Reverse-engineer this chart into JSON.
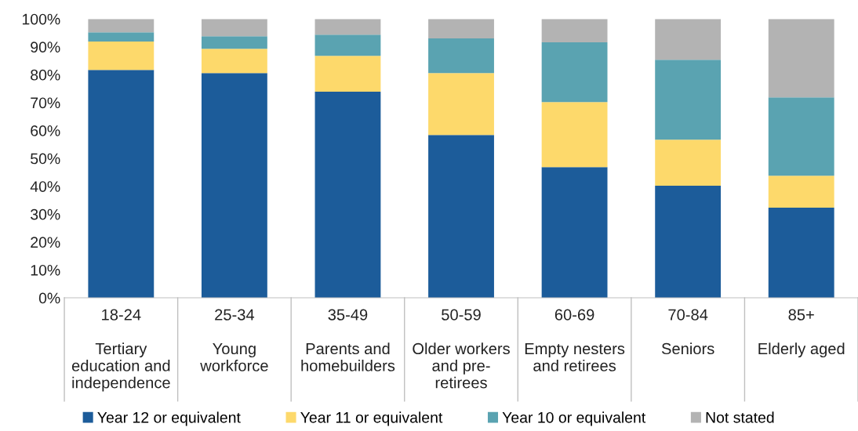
{
  "chart_data": {
    "type": "bar",
    "stacked": true,
    "categories": [
      "18-24\n\nTertiary\neducation and\nindependence",
      "25-34\n\nYoung\nworkforce",
      "35-49\n\nParents and\nhomebuilders",
      "50-59\n\nOlder workers\nand pre-\nretirees",
      "60-69\n\nEmpty nesters\nand retirees",
      "70-84\n\nSeniors",
      "85+\n\nElderly aged"
    ],
    "series": [
      {
        "name": "Year 12 or equivalent",
        "color": "#1c5c9a",
        "values": [
          81.7,
          80.6,
          73.9,
          58.4,
          46.9,
          40.2,
          32.3
        ]
      },
      {
        "name": "Year 11 or equivalent",
        "color": "#fdd96b",
        "values": [
          10.2,
          8.7,
          12.9,
          22.2,
          23.3,
          16.5,
          11.5
        ]
      },
      {
        "name": "Year 10 or equivalent",
        "color": "#5aa3b1",
        "values": [
          3.3,
          4.5,
          7.6,
          12.4,
          21.4,
          28.7,
          28.1
        ]
      },
      {
        "name": "Not stated",
        "color": "#b3b3b3",
        "values": [
          4.8,
          6.2,
          5.6,
          7.0,
          8.4,
          14.6,
          28.1
        ]
      }
    ],
    "ylim": [
      0,
      100
    ],
    "yticks": [
      {
        "value": 0,
        "label": "0%"
      },
      {
        "value": 10,
        "label": "10%"
      },
      {
        "value": 20,
        "label": "20%"
      },
      {
        "value": 30,
        "label": "30%"
      },
      {
        "value": 40,
        "label": "40%"
      },
      {
        "value": 50,
        "label": "50%"
      },
      {
        "value": 60,
        "label": "60%"
      },
      {
        "value": 70,
        "label": "70%"
      },
      {
        "value": 80,
        "label": "80%"
      },
      {
        "value": 90,
        "label": "90%"
      },
      {
        "value": 100,
        "label": "100%"
      }
    ],
    "grid": false,
    "legend": "bottom"
  }
}
